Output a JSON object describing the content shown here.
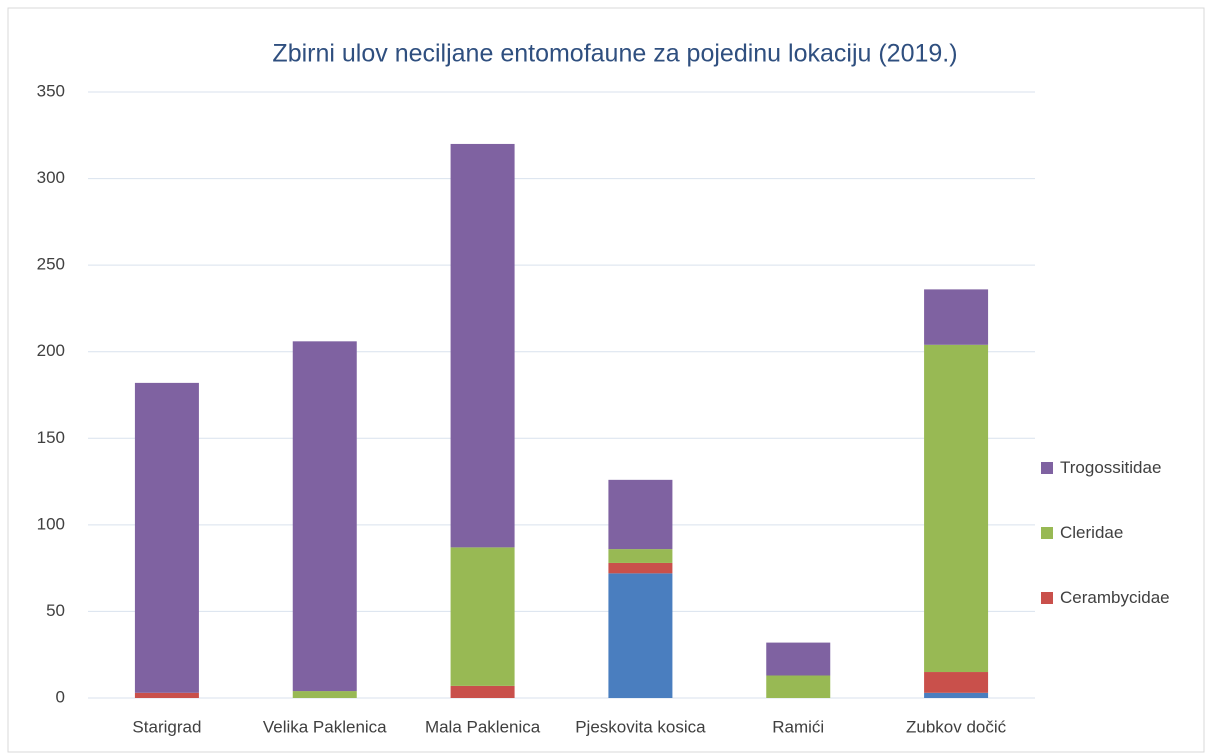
{
  "chart_data": {
    "type": "stacked_bar",
    "title": "Zbirni ulov neciljane entomofaune za pojedinu lokaciju (2019.)",
    "categories": [
      "Starigrad",
      "Velika Paklenica",
      "Mala Paklenica",
      "Pjeskovita kosica",
      "Ramići",
      "Zubkov dočić"
    ],
    "series": [
      {
        "color": "#4a7ebf",
        "values": [
          0,
          0,
          0,
          72,
          0,
          3
        ]
      },
      {
        "name": "Cerambycidae",
        "color": "#c9504b",
        "values": [
          3,
          0,
          7,
          6,
          0,
          12
        ]
      },
      {
        "name": "Cleridae",
        "color": "#98b954",
        "values": [
          0,
          4,
          80,
          8,
          13,
          189
        ]
      },
      {
        "name": "Trogossitidae",
        "color": "#7f62a1",
        "values": [
          179,
          202,
          233,
          40,
          19,
          32
        ]
      }
    ],
    "ylim": [
      0,
      350
    ],
    "yticks": [
      0,
      50,
      100,
      150,
      200,
      250,
      300,
      350
    ],
    "grid": true,
    "legend": "right"
  }
}
